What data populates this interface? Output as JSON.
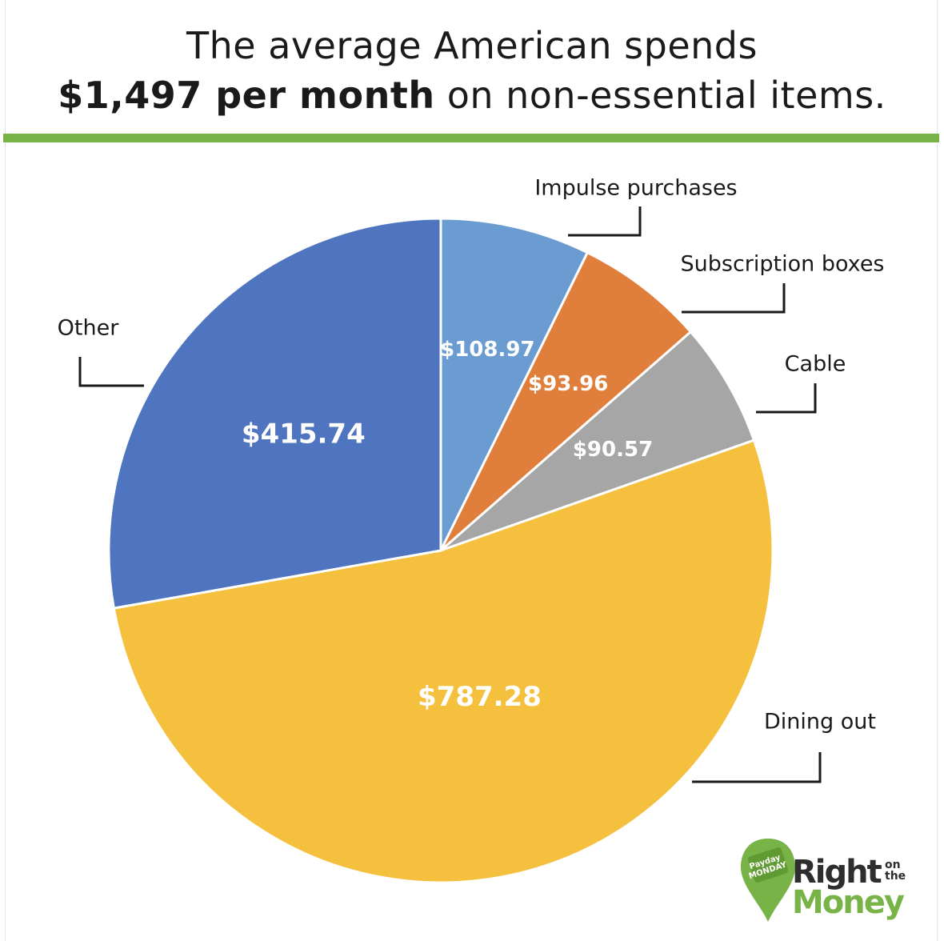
{
  "title": {
    "line1": "The average American spends",
    "line2_bold": "$1,497 per month",
    "line2_rest": " on non-essential items."
  },
  "chart_data": {
    "type": "pie",
    "total_label": "$1,497",
    "slices": [
      {
        "category": "Impulse purchases",
        "value": 108.97,
        "value_label": "$108.97",
        "color": "#6a9bd1"
      },
      {
        "category": "Subscription boxes",
        "value": 93.96,
        "value_label": "$93.96",
        "color": "#e07e3c"
      },
      {
        "category": "Cable",
        "value": 90.57,
        "value_label": "$90.57",
        "color": "#a6a6a6"
      },
      {
        "category": "Dining out",
        "value": 787.28,
        "value_label": "$787.28",
        "color": "#f4c03e"
      },
      {
        "category": "Other",
        "value": 415.74,
        "value_label": "$415.74",
        "color": "#4f74c0"
      }
    ]
  },
  "brand": {
    "badge": "Payday MONDAY",
    "word1": "Right",
    "word2": "on the",
    "word3": "Money",
    "accent_color": "#78b347"
  }
}
